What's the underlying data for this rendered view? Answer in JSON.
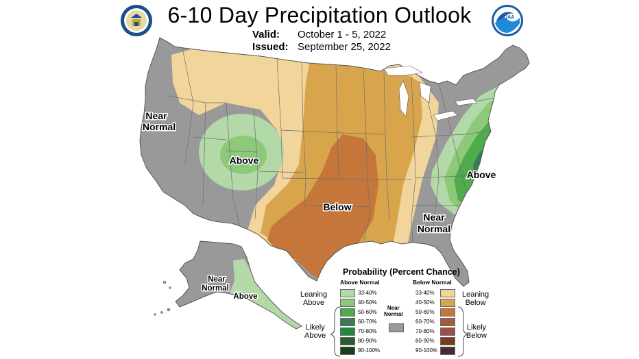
{
  "header": {
    "title": "6-10 Day Precipitation Outlook",
    "valid_label": "Valid:",
    "valid_value": "October 1 - 5, 2022",
    "issued_label": "Issued:",
    "issued_value": "September 25, 2022"
  },
  "logos": {
    "left": "doc-seal-icon",
    "right": "noaa-logo-icon"
  },
  "map_labels": {
    "west_near_normal_1": "Near",
    "west_near_normal_2": "Normal",
    "west_above": "Above",
    "central_below": "Below",
    "east_above": "Above",
    "se_near_normal_1": "Near",
    "se_near_normal_2": "Normal",
    "alaska_near_normal_1": "Near",
    "alaska_near_normal_2": "Normal",
    "alaska_above": "Above"
  },
  "colors": {
    "near_normal": "#999999",
    "above_33_40": "#b3d9a8",
    "above_40_50": "#8cc979",
    "above_50_60": "#4fab4b",
    "above_60_70": "#3b7a57",
    "above_70_80": "#1f8a3c",
    "above_80_90": "#285c33",
    "above_90_100": "#1d3d1a",
    "below_33_40": "#f2d59b",
    "below_40_50": "#d9a54c",
    "below_50_60": "#c5763a",
    "below_60_70": "#a55a3a",
    "below_70_80": "#9c4e40",
    "below_80_90": "#7a3b1a",
    "below_90_100": "#4a2a2a",
    "water": "#ffffff"
  },
  "legend": {
    "title": "Probability (Percent Chance)",
    "above_header": "Above Normal",
    "below_header": "Below Normal",
    "near_normal_1": "Near",
    "near_normal_2": "Normal",
    "leaning_above_1": "Leaning",
    "leaning_above_2": "Above",
    "likely_above_1": "Likely",
    "likely_above_2": "Above",
    "leaning_below_1": "Leaning",
    "leaning_below_2": "Below",
    "likely_below_1": "Likely",
    "likely_below_2": "Below",
    "above_bins": [
      "33-40%",
      "40-50%",
      "50-60%",
      "60-70%",
      "70-80%",
      "80-90%",
      "90-100%"
    ],
    "below_bins": [
      "33-40%",
      "40-50%",
      "50-60%",
      "60-70%",
      "70-80%",
      "80-90%",
      "90-100%"
    ]
  }
}
